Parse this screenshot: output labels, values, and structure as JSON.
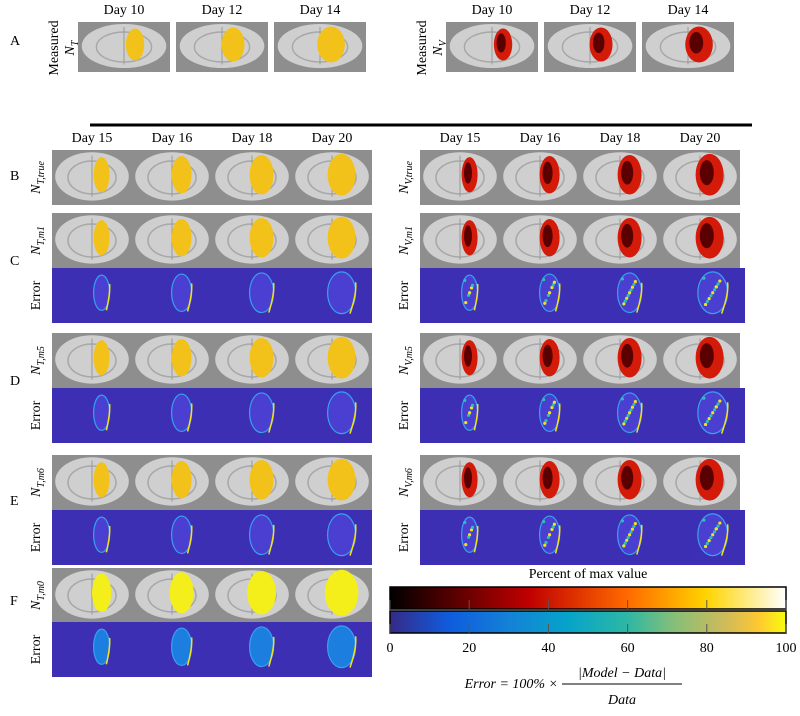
{
  "panel_letters": [
    "A",
    "B",
    "C",
    "D",
    "E",
    "F"
  ],
  "measured": {
    "prefix": "Measured",
    "tumor": {
      "symbol": "N",
      "subscript": "T"
    },
    "vessel": {
      "symbol": "N",
      "subscript": "V"
    },
    "days": [
      "Day 10",
      "Day 12",
      "Day 14"
    ]
  },
  "forecast_days": [
    "Day 15",
    "Day 16",
    "Day 18",
    "Day 20"
  ],
  "rows": [
    {
      "tumor": {
        "symbol": "N",
        "subscript": "T,true"
      },
      "vessel": {
        "symbol": "N",
        "subscript": "V,true"
      }
    },
    {
      "tumor": {
        "symbol": "N",
        "subscript": "T,m1"
      },
      "vessel": {
        "symbol": "N",
        "subscript": "V,m1"
      },
      "error_left": "Error",
      "error_right": "Error"
    },
    {
      "tumor": {
        "symbol": "N",
        "subscript": "T,m5"
      },
      "vessel": {
        "symbol": "N",
        "subscript": "V,m5"
      },
      "error_left": "Error",
      "error_right": "Error"
    },
    {
      "tumor": {
        "symbol": "N",
        "subscript": "T,m6"
      },
      "vessel": {
        "symbol": "N",
        "subscript": "V,m6"
      },
      "error_left": "Error",
      "error_right": "Error"
    },
    {
      "tumor": {
        "symbol": "N",
        "subscript": "T,m0"
      },
      "error_left": "Error"
    }
  ],
  "colorbar": {
    "title": "Percent of max value",
    "lim": [
      0,
      100
    ],
    "ticks": [
      0,
      20,
      40,
      60,
      80,
      100
    ]
  },
  "formula": {
    "lhs": "Error = 100% ×",
    "numerator": "|Model − Data|",
    "denominator": "Data"
  }
}
